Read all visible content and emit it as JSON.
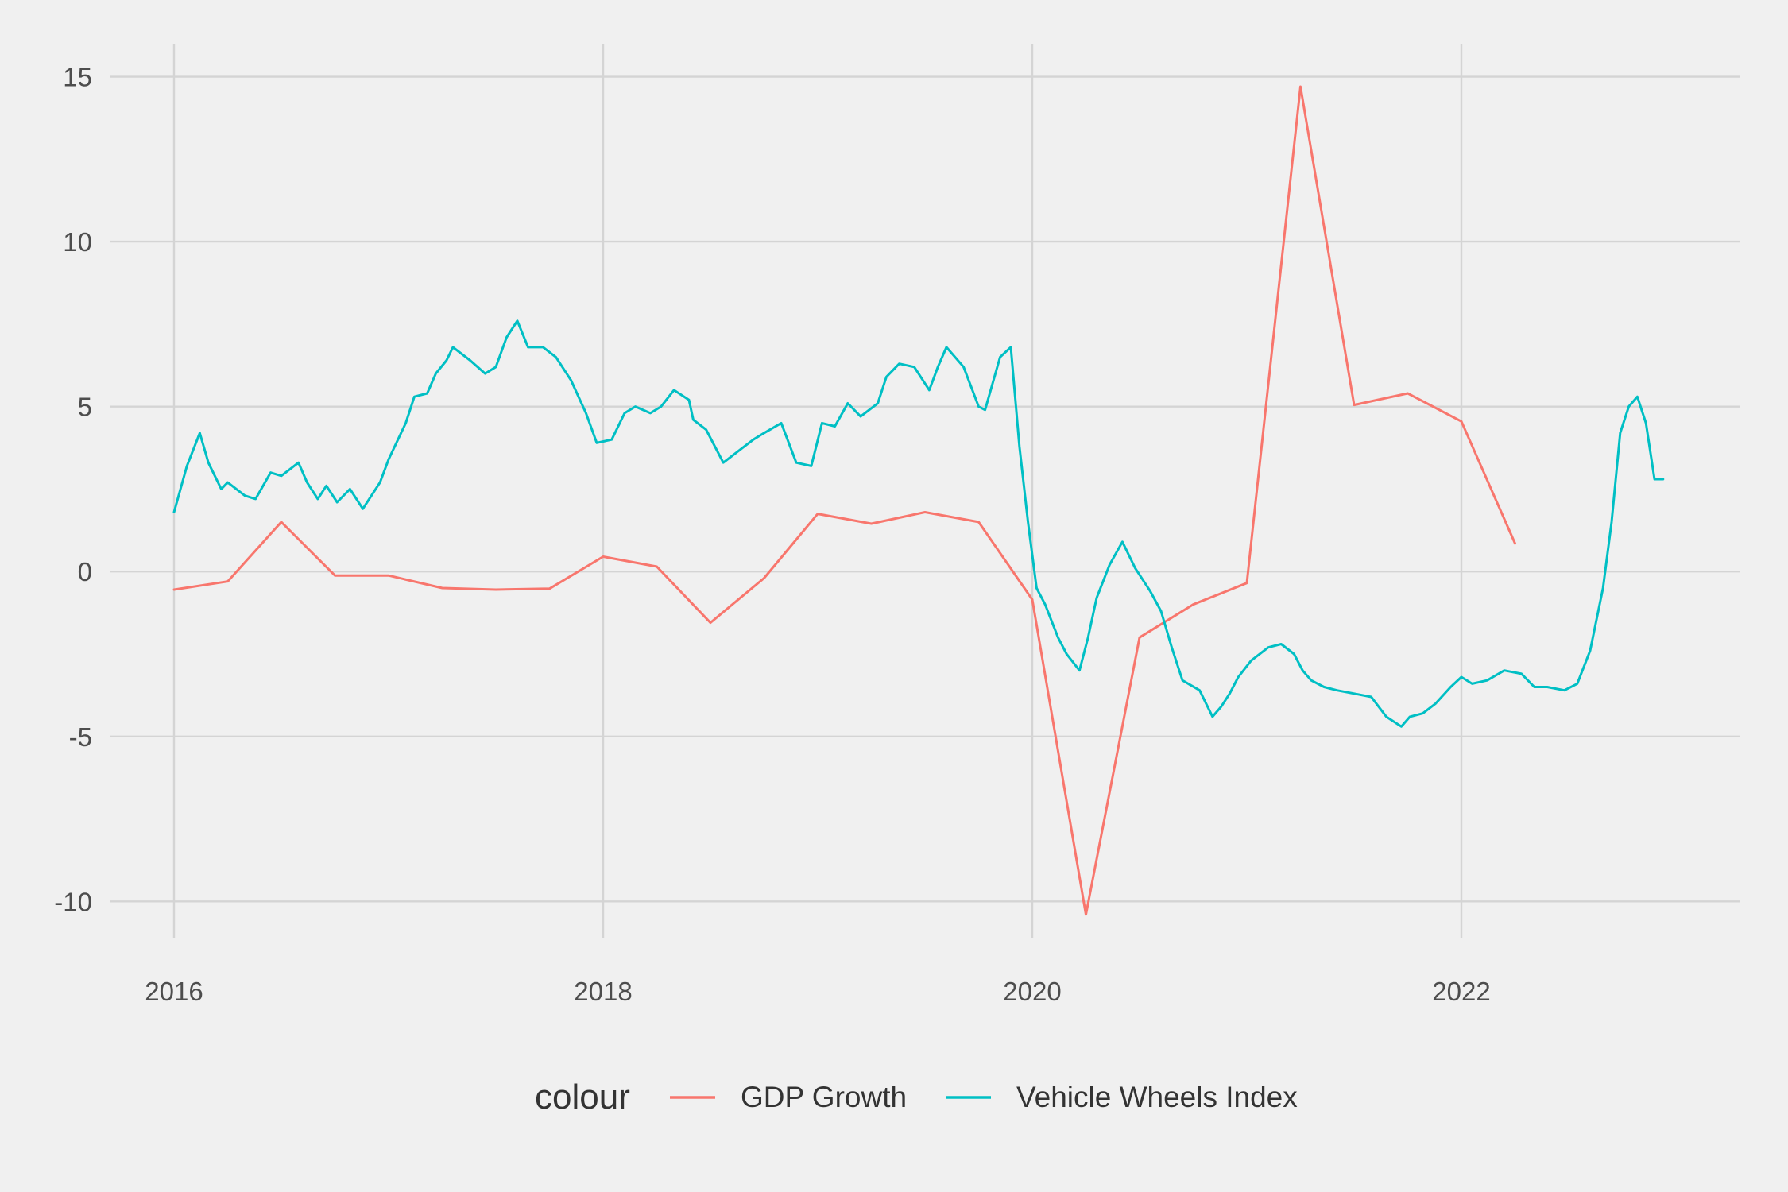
{
  "chart_data": {
    "type": "line",
    "title": "",
    "xlabel": "",
    "ylabel": "",
    "xlim": [
      2015.7,
      2023.3
    ],
    "ylim": [
      -11.1,
      16.0
    ],
    "x_ticks": [
      2016,
      2018,
      2020,
      2022
    ],
    "x_tick_labels": [
      "2016",
      "2018",
      "2020",
      "2022"
    ],
    "y_ticks": [
      -10,
      -5,
      0,
      5,
      10,
      15
    ],
    "y_tick_labels": [
      "-10",
      "-5",
      "0",
      "5",
      "10",
      "15"
    ],
    "grid": true,
    "legend": {
      "position": "bottom",
      "title": "colour"
    },
    "series": [
      {
        "name": "GDP Growth",
        "color": "#F8766D",
        "x": [
          2016.0,
          2016.25,
          2016.5,
          2016.75,
          2017.0,
          2017.25,
          2017.5,
          2017.75,
          2018.0,
          2018.25,
          2018.5,
          2018.75,
          2019.0,
          2019.25,
          2019.5,
          2019.75,
          2020.0,
          2020.25,
          2020.5,
          2020.75,
          2021.0,
          2021.25,
          2021.5,
          2021.75,
          2022.0,
          2022.25
        ],
        "y": [
          -0.55,
          -0.3,
          1.5,
          -0.12,
          -0.12,
          -0.5,
          -0.55,
          -0.52,
          0.45,
          0.15,
          -1.55,
          -0.2,
          1.75,
          1.45,
          1.8,
          1.5,
          -0.85,
          -10.4,
          -2.0,
          -1.0,
          -0.35,
          14.7,
          5.05,
          5.4,
          4.55,
          0.85
        ]
      },
      {
        "name": "Vehicle Wheels Index",
        "color": "#00BFC4",
        "x": [
          2016.0,
          2016.06,
          2016.12,
          2016.16,
          2016.22,
          2016.25,
          2016.33,
          2016.38,
          2016.45,
          2016.5,
          2016.58,
          2016.62,
          2016.67,
          2016.71,
          2016.76,
          2016.82,
          2016.88,
          2016.96,
          2017.0,
          2017.08,
          2017.12,
          2017.18,
          2017.22,
          2017.27,
          2017.3,
          2017.38,
          2017.45,
          2017.5,
          2017.55,
          2017.6,
          2017.65,
          2017.72,
          2017.78,
          2017.85,
          2017.92,
          2017.97,
          2018.04,
          2018.1,
          2018.15,
          2018.22,
          2018.27,
          2018.33,
          2018.4,
          2018.42,
          2018.48,
          2018.56,
          2018.64,
          2018.7,
          2018.75,
          2018.83,
          2018.9,
          2018.97,
          2019.02,
          2019.08,
          2019.14,
          2019.2,
          2019.28,
          2019.32,
          2019.38,
          2019.45,
          2019.52,
          2019.56,
          2019.6,
          2019.68,
          2019.75,
          2019.78,
          2019.85,
          2019.9,
          2019.94,
          2019.98,
          2020.02,
          2020.06,
          2020.12,
          2020.16,
          2020.22,
          2020.26,
          2020.3,
          2020.36,
          2020.42,
          2020.48,
          2020.55,
          2020.6,
          2020.65,
          2020.7,
          2020.78,
          2020.84,
          2020.88,
          2020.92,
          2020.96,
          2021.02,
          2021.1,
          2021.16,
          2021.22,
          2021.26,
          2021.3,
          2021.36,
          2021.42,
          2021.5,
          2021.58,
          2021.65,
          2021.72,
          2021.76,
          2021.82,
          2021.88,
          2021.95,
          2022.0,
          2022.05,
          2022.12,
          2022.2,
          2022.28,
          2022.34,
          2022.4,
          2022.48,
          2022.54,
          2022.6,
          2022.66,
          2022.7,
          2022.74,
          2022.78,
          2022.82,
          2022.86,
          2022.9,
          2022.94
        ],
        "y": [
          1.8,
          3.2,
          4.2,
          3.3,
          2.5,
          2.7,
          2.3,
          2.2,
          3.0,
          2.9,
          3.3,
          2.7,
          2.2,
          2.6,
          2.1,
          2.5,
          1.9,
          2.7,
          3.4,
          4.5,
          5.3,
          5.4,
          6.0,
          6.4,
          6.8,
          6.4,
          6.0,
          6.2,
          7.1,
          7.6,
          6.8,
          6.8,
          6.5,
          5.8,
          4.8,
          3.9,
          4.0,
          4.8,
          5.0,
          4.8,
          5.0,
          5.5,
          5.2,
          4.6,
          4.3,
          3.3,
          3.7,
          4.0,
          4.2,
          4.5,
          3.3,
          3.2,
          4.5,
          4.4,
          5.1,
          4.7,
          5.1,
          5.9,
          6.3,
          6.2,
          5.5,
          6.2,
          6.8,
          6.2,
          5.0,
          4.9,
          6.5,
          6.8,
          3.8,
          1.5,
          -0.5,
          -1.0,
          -2.0,
          -2.5,
          -3.0,
          -2.0,
          -0.8,
          0.2,
          0.9,
          0.1,
          -0.6,
          -1.2,
          -2.3,
          -3.3,
          -3.6,
          -4.4,
          -4.1,
          -3.7,
          -3.2,
          -2.7,
          -2.3,
          -2.2,
          -2.5,
          -3.0,
          -3.3,
          -3.5,
          -3.6,
          -3.7,
          -3.8,
          -4.4,
          -4.7,
          -4.4,
          -4.3,
          -4.0,
          -3.5,
          -3.2,
          -3.4,
          -3.3,
          -3.0,
          -3.1,
          -3.5,
          -3.5,
          -3.6,
          -3.4,
          -2.4,
          -0.5,
          1.5,
          4.2,
          5.0,
          5.3,
          4.5,
          2.8,
          2.8
        ]
      }
    ]
  }
}
